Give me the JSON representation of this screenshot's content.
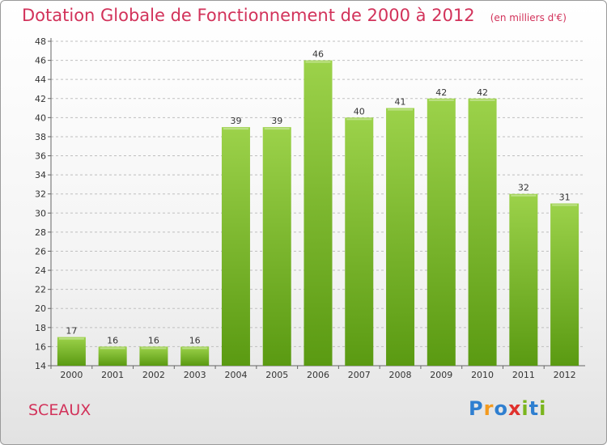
{
  "header": {
    "title": "Dotation Globale de Fonctionnement de 2000 à 2012",
    "subtitle": "(en milliers d'€)"
  },
  "footer": {
    "city": "SCEAUX",
    "brand": "Proxiti"
  },
  "colors": {
    "title": "#d2325a",
    "bar_top": "#9cd24a",
    "bar_bottom": "#5a9a12",
    "grid": "#bfbfbf"
  },
  "chart_data": {
    "type": "bar",
    "title": "Dotation Globale de Fonctionnement de 2000 à 2012",
    "subtitle": "(en milliers d'€)",
    "xlabel": "",
    "ylabel": "",
    "categories": [
      "2000",
      "2001",
      "2002",
      "2003",
      "2004",
      "2005",
      "2006",
      "2007",
      "2008",
      "2009",
      "2010",
      "2011",
      "2012"
    ],
    "values": [
      17,
      16,
      16,
      16,
      39,
      39,
      46,
      40,
      41,
      42,
      42,
      32,
      31
    ],
    "ylim": [
      14,
      48
    ],
    "yticks": [
      "14",
      "16",
      "18",
      "20",
      "22",
      "24",
      "26",
      "28",
      "30",
      "32",
      "34",
      "36",
      "38",
      "40",
      "42",
      "44",
      "46",
      "48"
    ],
    "grid": "horizontal dashed",
    "legend": "none",
    "data_labels": true
  }
}
